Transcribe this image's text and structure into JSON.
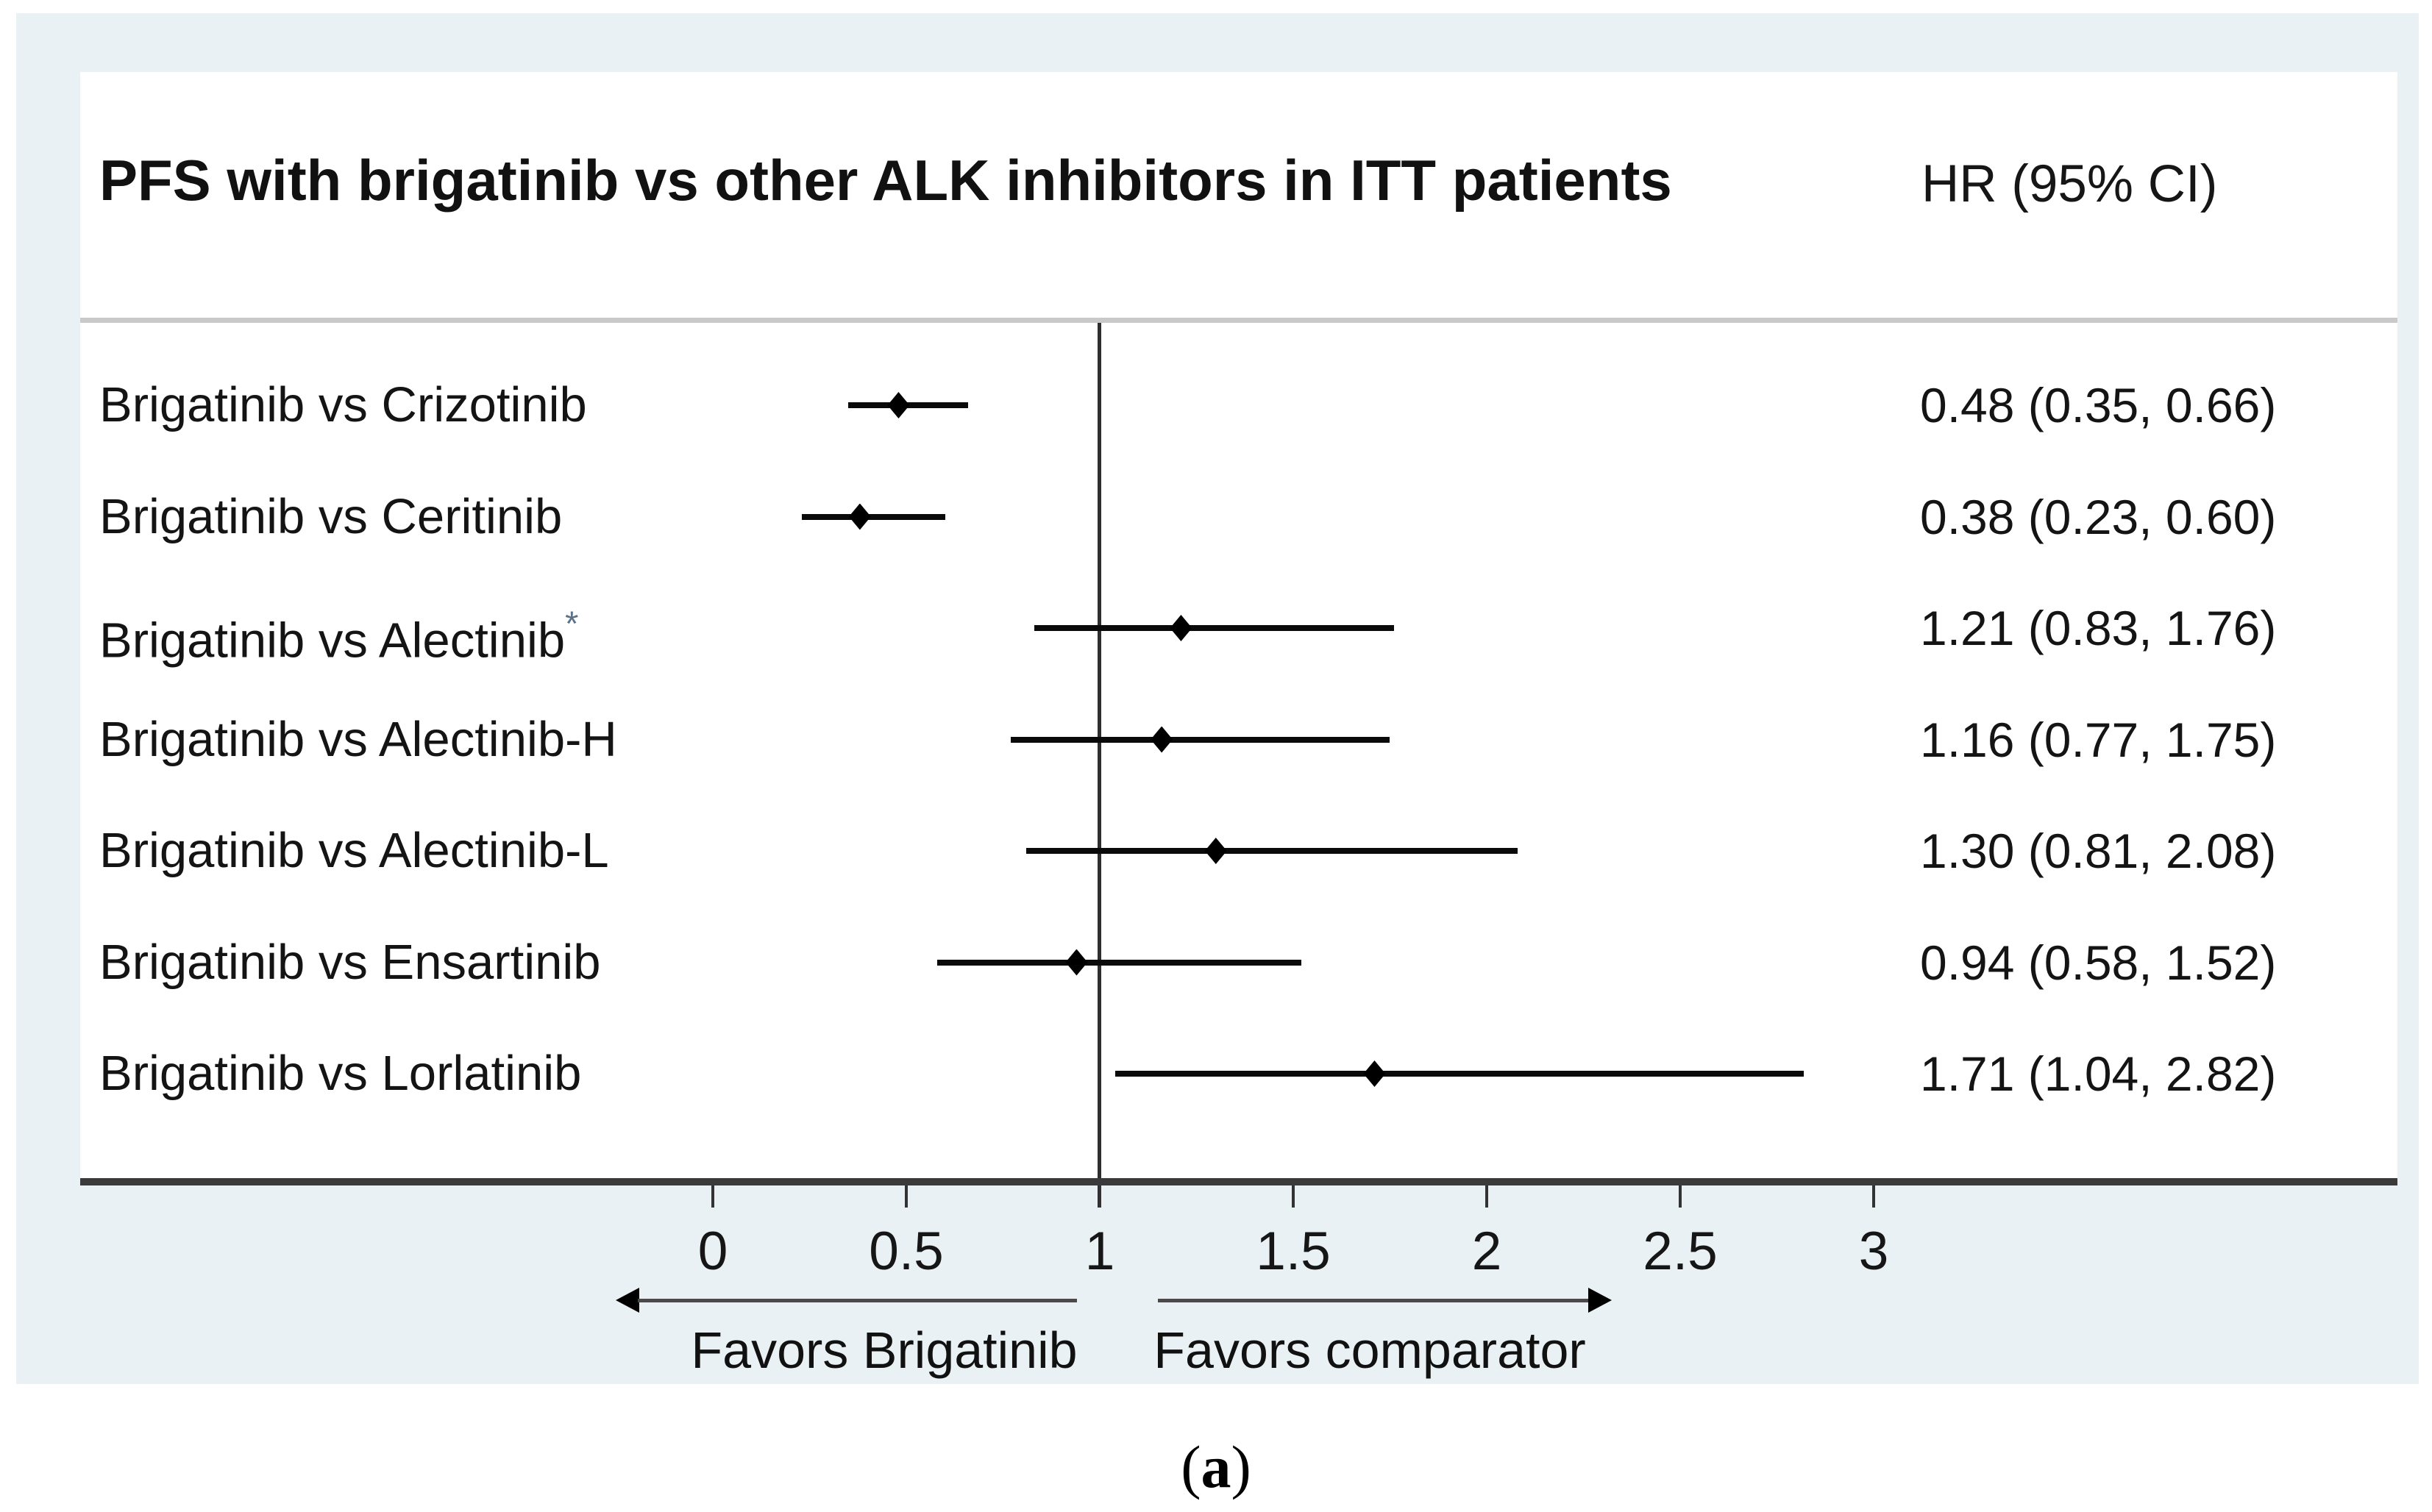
{
  "chart_data": {
    "type": "forest",
    "title": "PFS with brigatinib vs other ALK inhibitors in ITT patients",
    "hr_column_label": "HR (95% CI)",
    "rows": [
      {
        "label": "Brigatinib vs Crizotinib",
        "marker": "",
        "hr": 0.48,
        "lo": 0.35,
        "hi": 0.66,
        "hr_text": "0.48 (0.35, 0.66)"
      },
      {
        "label": "Brigatinib vs Ceritinib",
        "marker": "",
        "hr": 0.38,
        "lo": 0.23,
        "hi": 0.6,
        "hr_text": "0.38 (0.23, 0.60)"
      },
      {
        "label": "Brigatinib vs Alectinib",
        "marker": "*",
        "hr": 1.21,
        "lo": 0.83,
        "hi": 1.76,
        "hr_text": "1.21 (0.83, 1.76)"
      },
      {
        "label": "Brigatinib vs Alectinib-H",
        "marker": "",
        "hr": 1.16,
        "lo": 0.77,
        "hi": 1.75,
        "hr_text": "1.16 (0.77, 1.75)"
      },
      {
        "label": "Brigatinib vs Alectinib-L",
        "marker": "",
        "hr": 1.3,
        "lo": 0.81,
        "hi": 2.08,
        "hr_text": "1.30 (0.81, 2.08)"
      },
      {
        "label": "Brigatinib vs Ensartinib",
        "marker": "",
        "hr": 0.94,
        "lo": 0.58,
        "hi": 1.52,
        "hr_text": "0.94 (0.58, 1.52)"
      },
      {
        "label": "Brigatinib vs Lorlatinib",
        "marker": "",
        "hr": 1.71,
        "lo": 1.04,
        "hi": 2.82,
        "hr_text": "1.71 (1.04, 2.82)"
      }
    ],
    "x_axis": {
      "ticks": [
        0,
        0.5,
        1,
        1.5,
        2,
        2.5,
        3
      ],
      "tick_labels": [
        "0",
        "0.5",
        "1",
        "1.5",
        "2",
        "2.5",
        "3"
      ],
      "reference_value": 1
    },
    "annotations": {
      "left_arrow_label": "Favors Brigatinib",
      "right_arrow_label": "Favors comparator"
    },
    "legend_position": "none",
    "grid": false
  },
  "caption": {
    "open": "(",
    "letter": "a",
    "close": ")"
  },
  "colors": {
    "panel_background": "#e9f1f4",
    "plot_background": "#ffffff",
    "text": "#141414",
    "separator": "#c9c9c9",
    "axis_line": "#3a3a3a",
    "marker": "#000000",
    "asterisk": "#5a7188",
    "arrow_shaft": "#4a4a4a"
  }
}
